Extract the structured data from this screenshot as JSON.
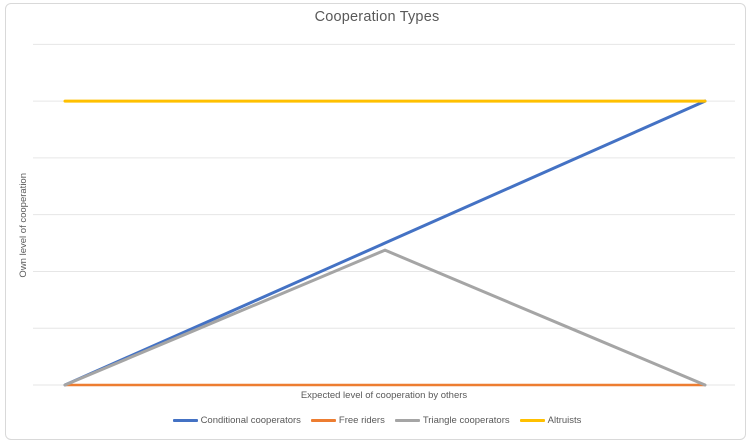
{
  "chart_data": {
    "type": "line",
    "title": "Cooperation Types",
    "xlabel": "Expected level of cooperation by others",
    "ylabel": "Own level of cooperation",
    "x": [
      0,
      0.1,
      0.2,
      0.3,
      0.4,
      0.5,
      0.6,
      0.7,
      0.8,
      0.9,
      1.0
    ],
    "series": [
      {
        "name": "Conditional cooperators",
        "color": "#4472C4",
        "width": 3,
        "values": [
          0,
          0.1,
          0.2,
          0.3,
          0.4,
          0.5,
          0.6,
          0.7,
          0.8,
          0.9,
          1.0
        ]
      },
      {
        "name": "Free riders",
        "color": "#ED7D31",
        "width": 2.5,
        "values": [
          0,
          0,
          0,
          0,
          0,
          0,
          0,
          0,
          0,
          0,
          0
        ]
      },
      {
        "name": "Triangle cooperators",
        "color": "#A5A5A5",
        "width": 3,
        "values": [
          0,
          0.095,
          0.19,
          0.285,
          0.38,
          0.475,
          0.38,
          0.285,
          0.19,
          0.095,
          0
        ]
      },
      {
        "name": "Altruists",
        "color": "#FFC000",
        "width": 3,
        "values": [
          1,
          1,
          1,
          1,
          1,
          1,
          1,
          1,
          1,
          1,
          1
        ]
      }
    ],
    "ylim": [
      0,
      1.2
    ],
    "gridline_step": 0.2,
    "grid": true,
    "tick_labels_visible": false,
    "legend_position": "bottom"
  },
  "colors": {
    "background": "#FFFFFF",
    "border": "#D9D9D9",
    "gridline": "#E6E6E6",
    "text": "#595959"
  }
}
